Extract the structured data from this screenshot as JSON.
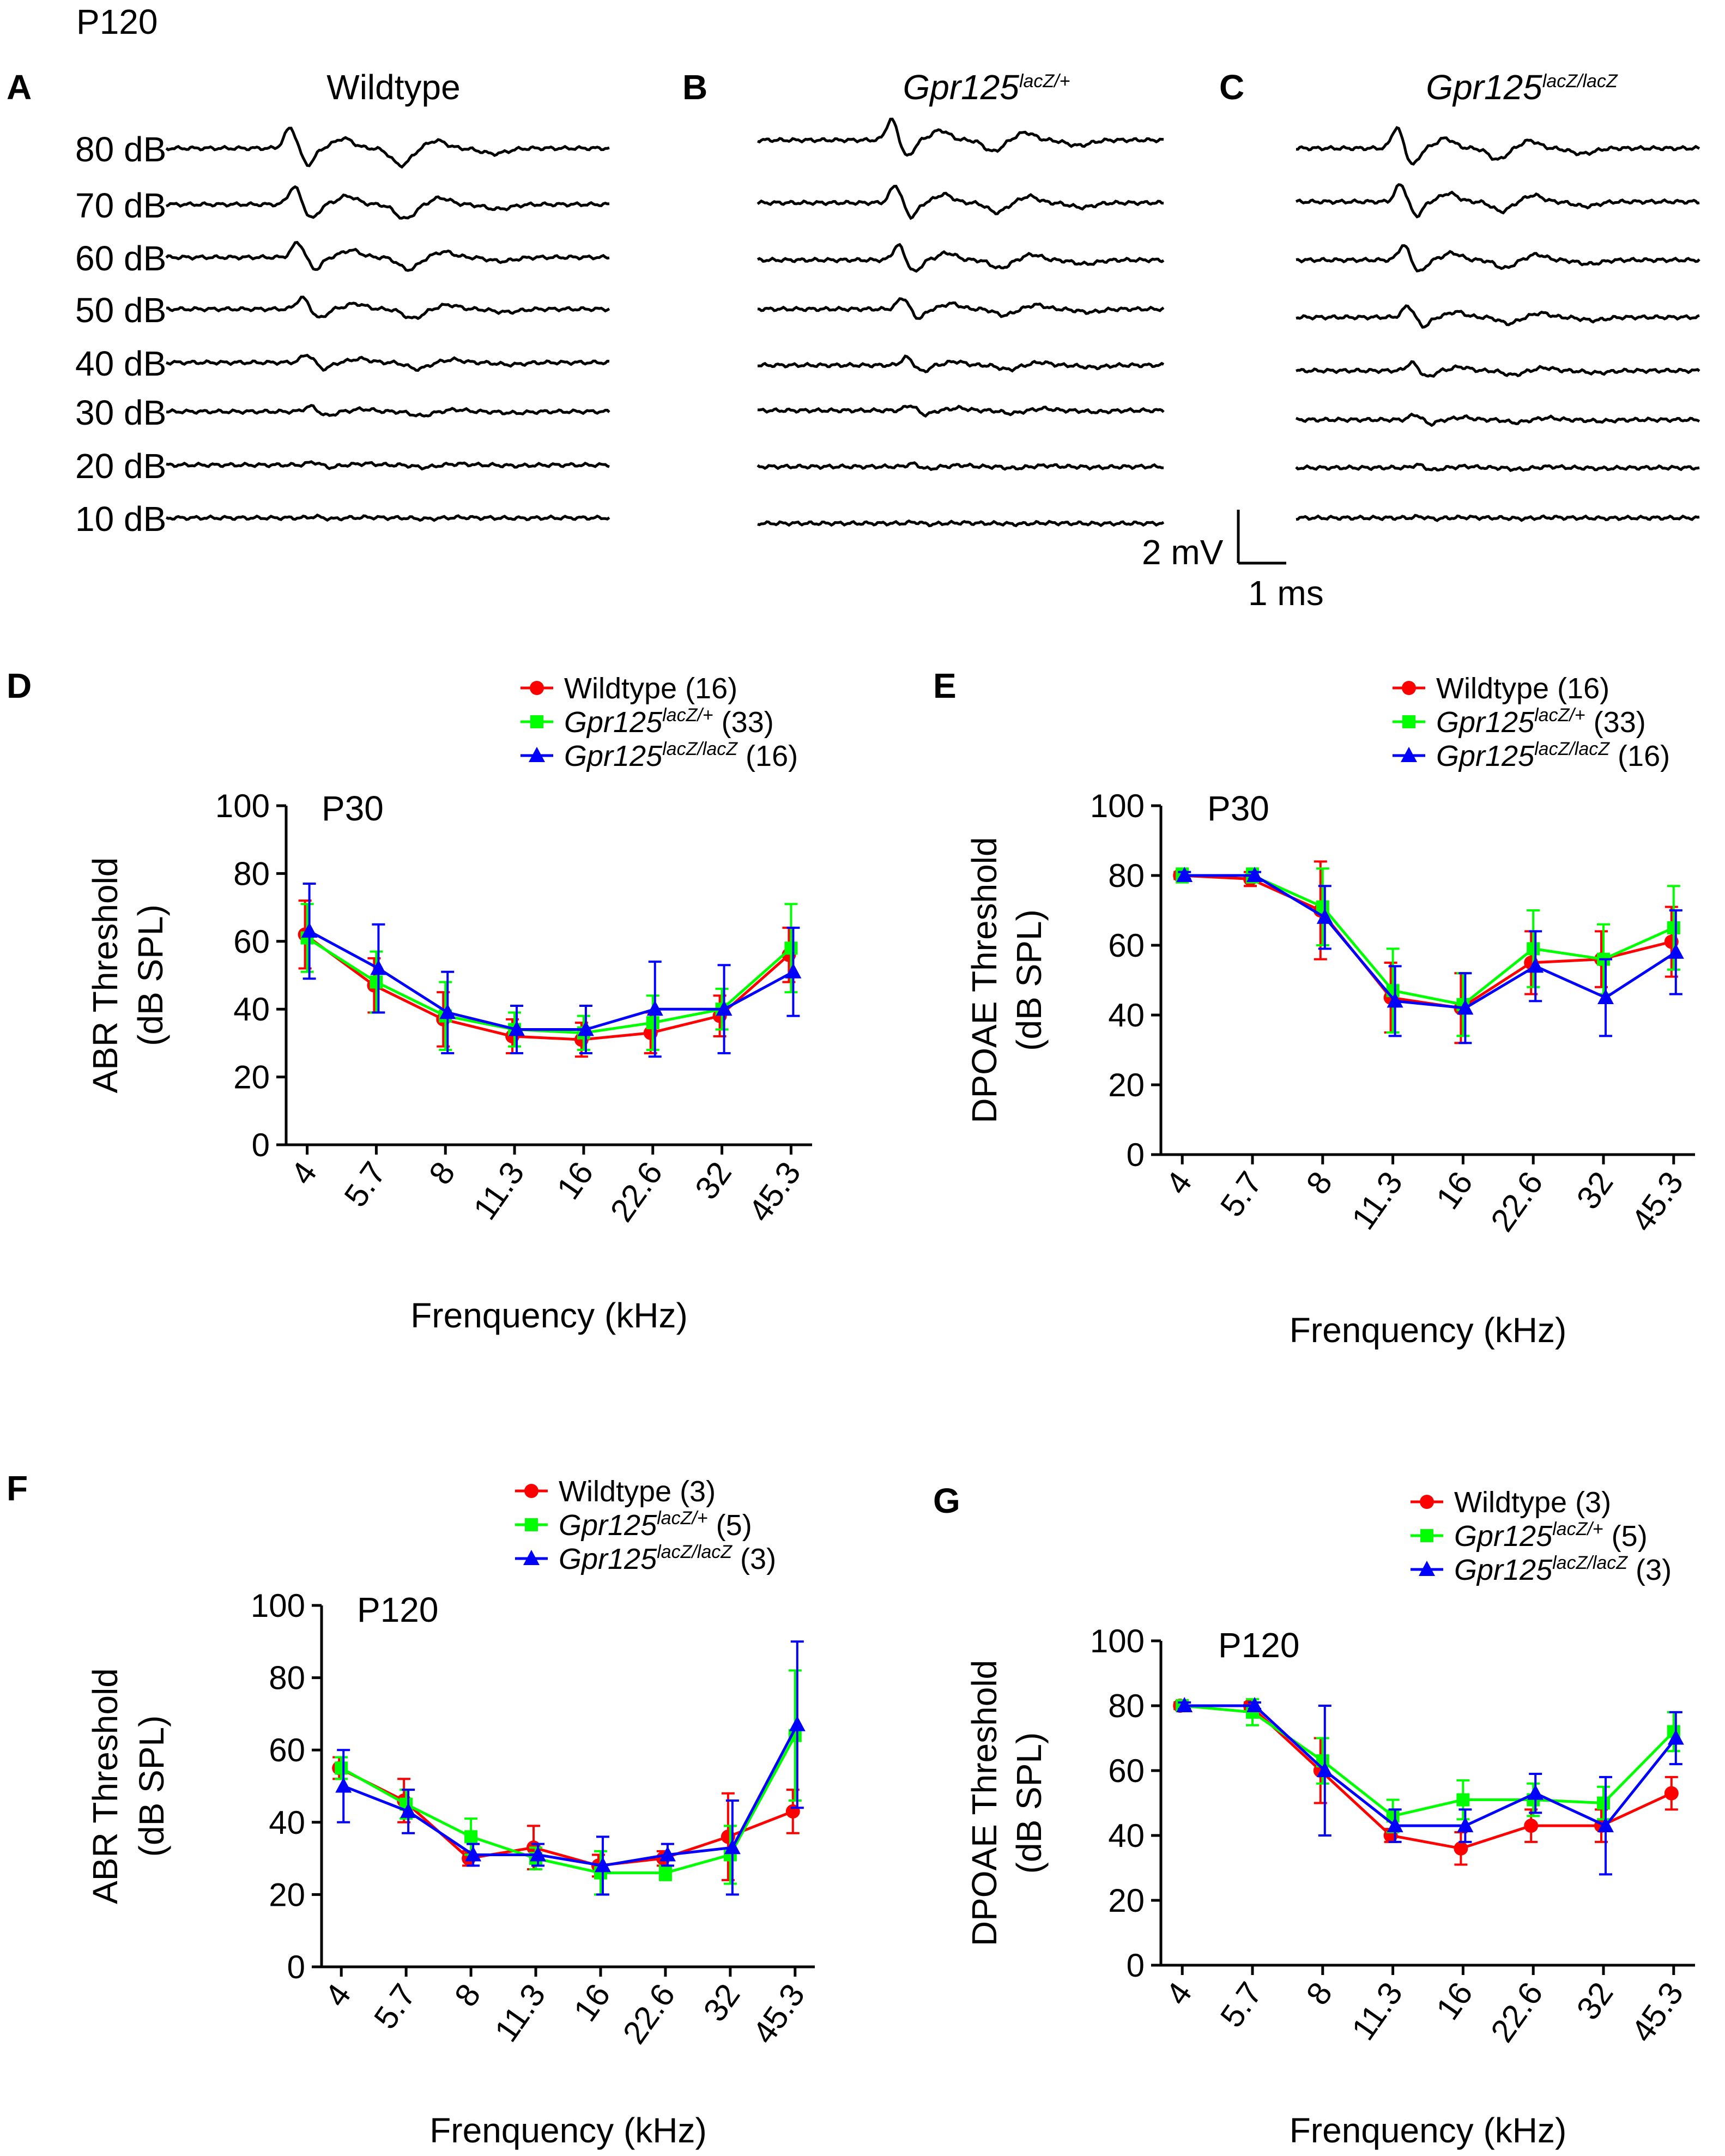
{
  "top_label": "P120",
  "scale_bar": {
    "voltage": "2 mV",
    "time": "1 ms"
  },
  "abr_traces": {
    "levels": [
      "80 dB",
      "70 dB",
      "60 dB",
      "50 dB",
      "40 dB",
      "30 dB",
      "20 dB",
      "10 dB"
    ],
    "amplitudes": [
      1.0,
      0.85,
      0.72,
      0.55,
      0.38,
      0.25,
      0.14,
      0.06
    ],
    "panels": [
      {
        "letter": "A",
        "title_main": "Wildtype",
        "title_sup": ""
      },
      {
        "letter": "B",
        "title_main": "Gpr125",
        "title_sup": "lacZ/+"
      },
      {
        "letter": "C",
        "title_main": "Gpr125",
        "title_sup": "lacZ/lacZ"
      }
    ]
  },
  "chart_data": [
    {
      "panel": "D",
      "type": "line",
      "stage": "P30",
      "categories": [
        "4",
        "5.7",
        "8",
        "11.3",
        "16",
        "22.6",
        "32",
        "45.3"
      ],
      "xlabel": "Frenquency (kHz)",
      "ylabel": [
        "ABR Threshold",
        "(dB SPL)"
      ],
      "ylim": [
        0,
        100
      ],
      "yticks": [
        "0",
        "20",
        "40",
        "60",
        "80",
        "100"
      ],
      "series": [
        {
          "name": "Wildtype",
          "n": "(16)",
          "color": "#ff0000",
          "marker": "circle",
          "values": [
            62,
            47,
            37,
            32,
            31,
            33,
            38,
            56
          ],
          "errors": [
            10,
            8,
            8,
            5,
            5,
            6,
            6,
            8
          ]
        },
        {
          "name": "Gpr125",
          "sup": "lacZ/+",
          "n": "(33)",
          "color": "#00ff00",
          "marker": "square",
          "values": [
            61,
            48,
            38,
            34,
            33,
            36,
            40,
            58
          ],
          "errors": [
            10,
            9,
            10,
            5,
            5,
            8,
            6,
            13
          ]
        },
        {
          "name": "Gpr125",
          "sup": "lacZ/lacZ",
          "n": "(16)",
          "color": "#0000ff",
          "marker": "triangle",
          "values": [
            63,
            52,
            39,
            34,
            34,
            40,
            40,
            51
          ],
          "errors": [
            14,
            13,
            12,
            7,
            7,
            14,
            13,
            13
          ]
        }
      ]
    },
    {
      "panel": "E",
      "type": "line",
      "stage": "P30",
      "categories": [
        "4",
        "5.7",
        "8",
        "11.3",
        "16",
        "22.6",
        "32",
        "45.3"
      ],
      "xlabel": "Frenquency (kHz)",
      "ylabel": [
        "DPOAE  Threshold",
        "(dB SPL)"
      ],
      "ylim": [
        0,
        100
      ],
      "yticks": [
        "0",
        "20",
        "40",
        "60",
        "80",
        "100"
      ],
      "series": [
        {
          "name": "Wildtype",
          "n": "(16)",
          "color": "#ff0000",
          "marker": "circle",
          "values": [
            80,
            79,
            70,
            45,
            42,
            55,
            56,
            61
          ],
          "errors": [
            1,
            2,
            14,
            10,
            10,
            9,
            8,
            10
          ]
        },
        {
          "name": "Gpr125",
          "sup": "lacZ/+",
          "n": "(33)",
          "color": "#00ff00",
          "marker": "square",
          "values": [
            80,
            80,
            71,
            47,
            43,
            59,
            56,
            65
          ],
          "errors": [
            2,
            2,
            11,
            12,
            9,
            11,
            10,
            12
          ]
        },
        {
          "name": "Gpr125",
          "sup": "lacZ/lacZ",
          "n": "(16)",
          "color": "#0000ff",
          "marker": "triangle",
          "values": [
            80,
            80,
            68,
            44,
            42,
            54,
            45,
            58
          ],
          "errors": [
            1,
            1,
            9,
            10,
            10,
            10,
            11,
            12
          ]
        }
      ]
    },
    {
      "panel": "F",
      "type": "line",
      "stage": "P120",
      "categories": [
        "4",
        "5.7",
        "8",
        "11.3",
        "16",
        "22.6",
        "32",
        "45.3"
      ],
      "xlabel": "Frenquency (kHz)",
      "ylabel": [
        "ABR Threshold",
        "(dB SPL)"
      ],
      "ylim": [
        0,
        100
      ],
      "yticks": [
        "0",
        "20",
        "40",
        "60",
        "80",
        "100"
      ],
      "series": [
        {
          "name": "Wildtype",
          "n": "(3)",
          "color": "#ff0000",
          "marker": "circle",
          "values": [
            55,
            46,
            30,
            33,
            28,
            30,
            36,
            43
          ],
          "errors": [
            3,
            6,
            2,
            6,
            3,
            2,
            12,
            6
          ]
        },
        {
          "name": "Gpr125",
          "sup": "lacZ/+",
          "n": "(5)",
          "color": "#00ff00",
          "marker": "square",
          "values": [
            55,
            45,
            36,
            30,
            26,
            26,
            31,
            64
          ],
          "errors": [
            3,
            4,
            5,
            3,
            6,
            2,
            8,
            18
          ]
        },
        {
          "name": "Gpr125",
          "sup": "lacZ/lacZ",
          "n": "(3)",
          "color": "#0000ff",
          "marker": "triangle",
          "values": [
            50,
            43,
            31,
            31,
            28,
            31,
            33,
            67
          ],
          "errors": [
            10,
            6,
            3,
            3,
            8,
            3,
            13,
            23
          ]
        }
      ]
    },
    {
      "panel": "G",
      "type": "line",
      "stage": "P120",
      "categories": [
        "4",
        "5.7",
        "8",
        "11.3",
        "16",
        "22.6",
        "32",
        "45.3"
      ],
      "xlabel": "Frenquency (kHz)",
      "ylabel": [
        "DPOAE  Threshold",
        "(dB SPL)"
      ],
      "ylim": [
        0,
        100
      ],
      "yticks": [
        "0",
        "20",
        "40",
        "60",
        "80",
        "100"
      ],
      "series": [
        {
          "name": "Wildtype",
          "n": "(3)",
          "color": "#ff0000",
          "marker": "circle",
          "values": [
            80,
            80,
            60,
            40,
            36,
            43,
            43,
            53
          ],
          "errors": [
            1,
            1,
            10,
            2,
            5,
            5,
            5,
            5
          ]
        },
        {
          "name": "Gpr125",
          "sup": "lacZ/+",
          "n": "(5)",
          "color": "#00ff00",
          "marker": "square",
          "values": [
            80,
            78,
            63,
            46,
            51,
            51,
            50,
            72
          ],
          "errors": [
            1,
            4,
            7,
            5,
            6,
            5,
            5,
            6
          ]
        },
        {
          "name": "Gpr125",
          "sup": "lacZ/lacZ",
          "n": "(3)",
          "color": "#0000ff",
          "marker": "triangle",
          "values": [
            80,
            80,
            60,
            43,
            43,
            53,
            43,
            70
          ],
          "errors": [
            1,
            1,
            20,
            5,
            5,
            6,
            15,
            8
          ]
        }
      ]
    }
  ]
}
